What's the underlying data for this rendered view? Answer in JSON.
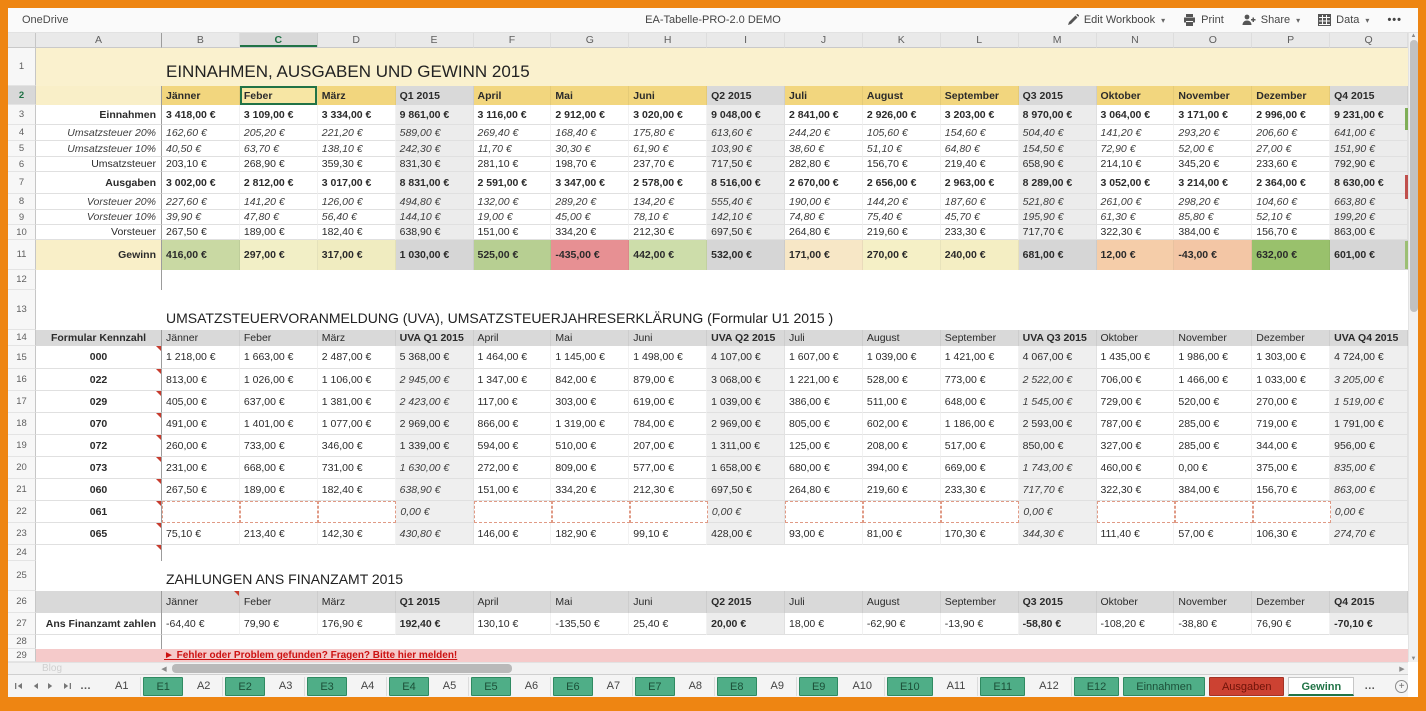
{
  "topbar": {
    "app": "OneDrive",
    "title": "EA-Tabelle-PRO-2.0 DEMO",
    "edit": "Edit Workbook",
    "print": "Print",
    "share": "Share",
    "data": "Data",
    "more": "•••"
  },
  "grid": {
    "columns": [
      "A",
      "B",
      "C",
      "D",
      "E",
      "F",
      "G",
      "H",
      "I",
      "J",
      "K",
      "L",
      "M",
      "N",
      "O",
      "P",
      "Q"
    ],
    "selected_column": "C",
    "row_numbers": [
      "1",
      "2",
      "3",
      "4",
      "5",
      "6",
      "7",
      "8",
      "9",
      "10",
      "11",
      "12",
      "13",
      "14",
      "15",
      "16",
      "17",
      "18",
      "19",
      "20",
      "21",
      "22",
      "23",
      "24",
      "25",
      "26",
      "27",
      "28",
      "29"
    ]
  },
  "colors": {
    "accent_green": "#217346",
    "frame_orange": "#ee8512",
    "month_yellow": "#f2d67e",
    "quarter_gray": "#d9d9d9",
    "title_band": "#faf1ce",
    "notice_pink": "#f5caca",
    "sliver_green": "#7fae57",
    "sliver_red": "#c0504d",
    "sliver_green2": "#9cbf74"
  },
  "sections": {
    "income": {
      "title": "EINNAHMEN, AUSGABEN UND GEWINN 2015",
      "months": [
        "Jänner",
        "Feber",
        "März",
        "Q1 2015",
        "April",
        "Mai",
        "Juni",
        "Q2 2015",
        "Juli",
        "August",
        "September",
        "Q3 2015",
        "Oktober",
        "November",
        "Dezember",
        "Q4 2015"
      ],
      "selected_cell": "Feber",
      "rows": [
        {
          "label": "Einnahmen",
          "bold": true,
          "values": [
            "3 418,00 €",
            "3 109,00 €",
            "3 334,00 €",
            "9 861,00 €",
            "3 116,00 €",
            "2 912,00 €",
            "3 020,00 €",
            "9 048,00 €",
            "2 841,00 €",
            "2 926,00 €",
            "3 203,00 €",
            "8 970,00 €",
            "3 064,00 €",
            "3 171,00 €",
            "2 996,00 €",
            "9 231,00 €"
          ]
        },
        {
          "label": "Umsatzsteuer 20%",
          "italic": true,
          "values": [
            "162,60 €",
            "205,20 €",
            "221,20 €",
            "589,00 €",
            "269,40 €",
            "168,40 €",
            "175,80 €",
            "613,60 €",
            "244,20 €",
            "105,60 €",
            "154,60 €",
            "504,40 €",
            "141,20 €",
            "293,20 €",
            "206,60 €",
            "641,00 €"
          ]
        },
        {
          "label": "Umsatzsteuer 10%",
          "italic": true,
          "values": [
            "40,50 €",
            "63,70 €",
            "138,10 €",
            "242,30 €",
            "11,70 €",
            "30,30 €",
            "61,90 €",
            "103,90 €",
            "38,60 €",
            "51,10 €",
            "64,80 €",
            "154,50 €",
            "72,90 €",
            "52,00 €",
            "27,00 €",
            "151,90 €"
          ]
        },
        {
          "label": "Umsatzsteuer",
          "values": [
            "203,10 €",
            "268,90 €",
            "359,30 €",
            "831,30 €",
            "281,10 €",
            "198,70 €",
            "237,70 €",
            "717,50 €",
            "282,80 €",
            "156,70 €",
            "219,40 €",
            "658,90 €",
            "214,10 €",
            "345,20 €",
            "233,60 €",
            "792,90 €"
          ]
        },
        {
          "label": "Ausgaben",
          "bold": true,
          "values": [
            "3 002,00 €",
            "2 812,00 €",
            "3 017,00 €",
            "8 831,00 €",
            "2 591,00 €",
            "3 347,00 €",
            "2 578,00 €",
            "8 516,00 €",
            "2 670,00 €",
            "2 656,00 €",
            "2 963,00 €",
            "8 289,00 €",
            "3 052,00 €",
            "3 214,00 €",
            "2 364,00 €",
            "8 630,00 €"
          ]
        },
        {
          "label": "Vorsteuer 20%",
          "italic": true,
          "values": [
            "227,60 €",
            "141,20 €",
            "126,00 €",
            "494,80 €",
            "132,00 €",
            "289,20 €",
            "134,20 €",
            "555,40 €",
            "190,00 €",
            "144,20 €",
            "187,60 €",
            "521,80 €",
            "261,00 €",
            "298,20 €",
            "104,60 €",
            "663,80 €"
          ]
        },
        {
          "label": "Vorsteuer 10%",
          "italic": true,
          "values": [
            "39,90 €",
            "47,80 €",
            "56,40 €",
            "144,10 €",
            "19,00 €",
            "45,00 €",
            "78,10 €",
            "142,10 €",
            "74,80 €",
            "75,40 €",
            "45,70 €",
            "195,90 €",
            "61,30 €",
            "85,80 €",
            "52,10 €",
            "199,20 €"
          ]
        },
        {
          "label": "Vorsteuer",
          "values": [
            "267,50 €",
            "189,00 €",
            "182,40 €",
            "638,90 €",
            "151,00 €",
            "334,20 €",
            "212,30 €",
            "697,50 €",
            "264,80 €",
            "219,60 €",
            "233,30 €",
            "717,70 €",
            "322,30 €",
            "384,00 €",
            "156,70 €",
            "863,00 €"
          ]
        }
      ],
      "gewinn": {
        "label": "Gewinn",
        "values": [
          "416,00 €",
          "297,00 €",
          "317,00 €",
          "1 030,00 €",
          "525,00 €",
          "-435,00 €",
          "442,00 €",
          "532,00 €",
          "171,00 €",
          "270,00 €",
          "240,00 €",
          "681,00 €",
          "12,00 €",
          "-43,00 €",
          "632,00 €",
          "601,00 €"
        ],
        "cell_colors": [
          "#c9d9a3",
          "#f2efc6",
          "#f0ecc0",
          "#d6d6d6",
          "#b7cf92",
          "#e79093",
          "#cdddaa",
          "#d6d6d6",
          "#f7e7c6",
          "#f5f0c6",
          "#f4eec3",
          "#d6d6d6",
          "#f5cda9",
          "#f3c6a5",
          "#99c16c",
          "#d6d6d6"
        ]
      }
    },
    "uva": {
      "title": "UMSATZSTEUERVORANMELDUNG (UVA), UMSATZSTEUERJAHRESERKLÄRUNG (Formular U1 2015 )",
      "label_header": "Formular Kennzahl",
      "months": [
        "Jänner",
        "Feber",
        "März",
        "UVA Q1 2015",
        "April",
        "Mai",
        "Juni",
        "UVA Q2 2015",
        "Juli",
        "August",
        "September",
        "UVA Q3 2015",
        "Oktober",
        "November",
        "Dezember",
        "UVA Q4 2015"
      ],
      "rows": [
        {
          "label": "000",
          "italics": [],
          "values": [
            "1 218,00 €",
            "1 663,00 €",
            "2 487,00 €",
            "5 368,00 €",
            "1 464,00 €",
            "1 145,00 €",
            "1 498,00 €",
            "4 107,00 €",
            "1 607,00 €",
            "1 039,00 €",
            "1 421,00 €",
            "4 067,00 €",
            "1 435,00 €",
            "1 986,00 €",
            "1 303,00 €",
            "4 724,00 €"
          ]
        },
        {
          "label": "022",
          "italics": [
            3,
            11,
            15
          ],
          "values": [
            "813,00 €",
            "1 026,00 €",
            "1 106,00 €",
            "2 945,00 €",
            "1 347,00 €",
            "842,00 €",
            "879,00 €",
            "3 068,00 €",
            "1 221,00 €",
            "528,00 €",
            "773,00 €",
            "2 522,00 €",
            "706,00 €",
            "1 466,00 €",
            "1 033,00 €",
            "3 205,00 €"
          ]
        },
        {
          "label": "029",
          "italics": [
            3,
            11,
            15
          ],
          "values": [
            "405,00 €",
            "637,00 €",
            "1 381,00 €",
            "2 423,00 €",
            "117,00 €",
            "303,00 €",
            "619,00 €",
            "1 039,00 €",
            "386,00 €",
            "511,00 €",
            "648,00 €",
            "1 545,00 €",
            "729,00 €",
            "520,00 €",
            "270,00 €",
            "1 519,00 €"
          ]
        },
        {
          "label": "070",
          "italics": [],
          "values": [
            "491,00 €",
            "1 401,00 €",
            "1 077,00 €",
            "2 969,00 €",
            "866,00 €",
            "1 319,00 €",
            "784,00 €",
            "2 969,00 €",
            "805,00 €",
            "602,00 €",
            "1 186,00 €",
            "2 593,00 €",
            "787,00 €",
            "285,00 €",
            "719,00 €",
            "1 791,00 €"
          ]
        },
        {
          "label": "072",
          "italics": [],
          "values": [
            "260,00 €",
            "733,00 €",
            "346,00 €",
            "1 339,00 €",
            "594,00 €",
            "510,00 €",
            "207,00 €",
            "1 311,00 €",
            "125,00 €",
            "208,00 €",
            "517,00 €",
            "850,00 €",
            "327,00 €",
            "285,00 €",
            "344,00 €",
            "956,00 €"
          ]
        },
        {
          "label": "073",
          "italics": [
            3,
            11,
            15
          ],
          "values": [
            "231,00 €",
            "668,00 €",
            "731,00 €",
            "1 630,00 €",
            "272,00 €",
            "809,00 €",
            "577,00 €",
            "1 658,00 €",
            "680,00 €",
            "394,00 €",
            "669,00 €",
            "1 743,00 €",
            "460,00 €",
            "0,00 €",
            "375,00 €",
            "835,00 €"
          ]
        },
        {
          "label": "060",
          "italics": [
            3,
            11,
            15
          ],
          "values": [
            "267,50 €",
            "189,00 €",
            "182,40 €",
            "638,90 €",
            "151,00 €",
            "334,20 €",
            "212,30 €",
            "697,50 €",
            "264,80 €",
            "219,60 €",
            "233,30 €",
            "717,70 €",
            "322,30 €",
            "384,00 €",
            "156,70 €",
            "863,00 €"
          ]
        },
        {
          "label": "061",
          "italics": [
            3,
            7,
            11,
            15
          ],
          "dashed": true,
          "values": [
            "",
            "",
            "",
            "0,00 €",
            "",
            "",
            "",
            "0,00 €",
            "",
            "",
            "",
            "0,00 €",
            "",
            "",
            "",
            "0,00 €"
          ]
        },
        {
          "label": "065",
          "italics": [
            3,
            11,
            15
          ],
          "values": [
            "75,10 €",
            "213,40 €",
            "142,30 €",
            "430,80 €",
            "146,00 €",
            "182,90 €",
            "99,10 €",
            "428,00 €",
            "93,00 €",
            "81,00 €",
            "170,30 €",
            "344,30 €",
            "111,40 €",
            "57,00 €",
            "106,30 €",
            "274,70 €"
          ]
        }
      ]
    },
    "payments": {
      "title": "ZAHLUNGEN ANS FINANZAMT 2015",
      "months": [
        "Jänner",
        "Feber",
        "März",
        "Q1 2015",
        "April",
        "Mai",
        "Juni",
        "Q2 2015",
        "Juli",
        "August",
        "September",
        "Q3 2015",
        "Oktober",
        "November",
        "Dezember",
        "Q4 2015"
      ],
      "rows": [
        {
          "label": "Ans Finanzamt zahlen",
          "bold_label": true,
          "values": [
            "-64,40 €",
            "79,90 €",
            "176,90 €",
            "192,40 €",
            "130,10 €",
            "-135,50 €",
            "25,40 €",
            "20,00 €",
            "18,00 €",
            "-62,90 €",
            "-13,90 €",
            "-58,80 €",
            "-108,20 €",
            "-38,80 €",
            "76,90 €",
            "-70,10 €"
          ]
        }
      ]
    }
  },
  "notice": "► Fehler oder Problem gefunden? Fragen? Bitte hier melden!",
  "blog_ghost": "Blog",
  "tabsbar": {
    "overflow_left": "…",
    "overflow_right": "…",
    "tabs": [
      {
        "label": "A1",
        "type": "plain"
      },
      {
        "label": "E1",
        "type": "green"
      },
      {
        "label": "A2",
        "type": "plain"
      },
      {
        "label": "E2",
        "type": "green"
      },
      {
        "label": "A3",
        "type": "plain"
      },
      {
        "label": "E3",
        "type": "green"
      },
      {
        "label": "A4",
        "type": "plain"
      },
      {
        "label": "E4",
        "type": "green"
      },
      {
        "label": "A5",
        "type": "plain"
      },
      {
        "label": "E5",
        "type": "green"
      },
      {
        "label": "A6",
        "type": "plain"
      },
      {
        "label": "E6",
        "type": "green"
      },
      {
        "label": "A7",
        "type": "plain"
      },
      {
        "label": "E7",
        "type": "green"
      },
      {
        "label": "A8",
        "type": "plain"
      },
      {
        "label": "E8",
        "type": "green"
      },
      {
        "label": "A9",
        "type": "plain"
      },
      {
        "label": "E9",
        "type": "green"
      },
      {
        "label": "A10",
        "type": "plain"
      },
      {
        "label": "E10",
        "type": "green"
      },
      {
        "label": "A11",
        "type": "plain"
      },
      {
        "label": "E11",
        "type": "green"
      },
      {
        "label": "A12",
        "type": "plain"
      },
      {
        "label": "E12",
        "type": "green"
      },
      {
        "label": "Einnahmen",
        "type": "green"
      },
      {
        "label": "Ausgaben",
        "type": "red"
      },
      {
        "label": "Gewinn",
        "type": "active"
      }
    ],
    "add": "+"
  }
}
